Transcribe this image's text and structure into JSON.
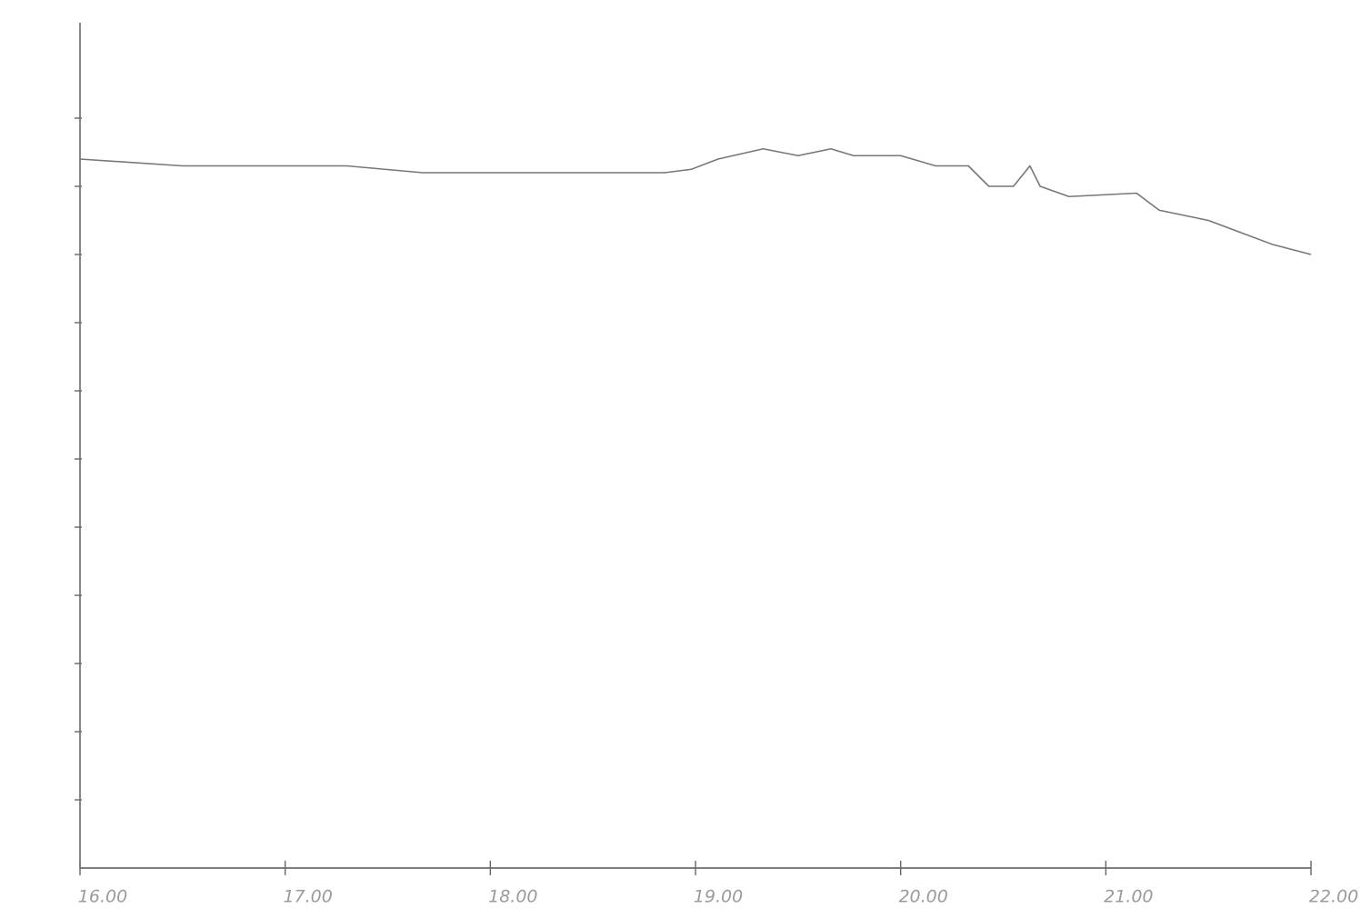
{
  "chart_data": {
    "type": "line",
    "x": [
      16.0,
      16.5,
      17.0,
      17.3,
      17.67,
      18.0,
      18.5,
      18.85,
      18.98,
      19.11,
      19.33,
      19.5,
      19.66,
      19.77,
      20.0,
      20.17,
      20.33,
      20.43,
      20.55,
      20.63,
      20.68,
      20.82,
      21.15,
      21.26,
      21.5,
      21.81,
      22.0
    ],
    "series": [
      {
        "color": "#777777",
        "values": [
          10.4,
          10.3,
          10.3,
          10.3,
          10.2,
          10.2,
          10.2,
          10.2,
          10.25,
          10.4,
          10.55,
          10.45,
          10.55,
          10.45,
          10.45,
          10.3,
          10.3,
          10.0,
          10.0,
          10.3,
          10.0,
          9.85,
          9.9,
          9.65,
          9.5,
          9.15,
          9.0
        ]
      }
    ],
    "xlim": [
      16,
      22
    ],
    "xticks": [
      {
        "value": 16,
        "label": "16.00"
      },
      {
        "value": 17,
        "label": "17.00"
      },
      {
        "value": 18,
        "label": "18.00"
      },
      {
        "value": 19,
        "label": "19.00"
      },
      {
        "value": 20,
        "label": "20.00"
      },
      {
        "value": 21,
        "label": "21.00"
      },
      {
        "value": 22,
        "label": "22.00"
      }
    ],
    "ylim": [
      0,
      12.4
    ],
    "yticks": [
      1,
      2,
      3,
      4,
      5,
      6,
      7,
      8,
      9,
      10,
      11
    ]
  }
}
